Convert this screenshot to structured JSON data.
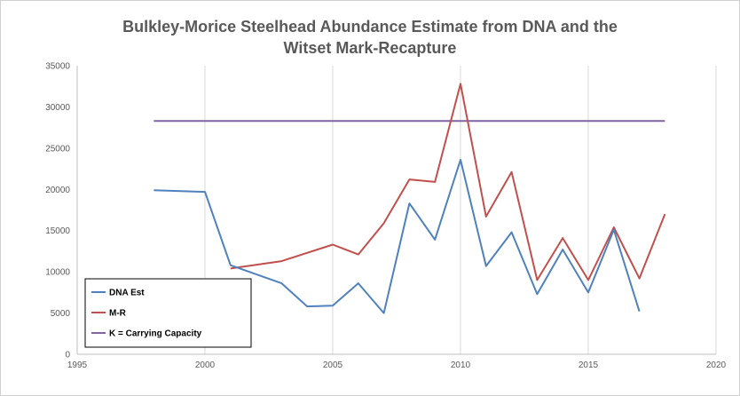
{
  "chart_data": {
    "type": "line",
    "title_lines": [
      "Bulkley-Morice Steelhead Abundance Estimate from DNA and the",
      "Witset Mark-Recapture"
    ],
    "xlabel": "",
    "ylabel": "",
    "xlim": [
      1995,
      2020
    ],
    "ylim": [
      0,
      35000
    ],
    "x_ticks": [
      1995,
      2000,
      2005,
      2010,
      2015,
      2020
    ],
    "y_ticks": [
      0,
      5000,
      10000,
      15000,
      20000,
      25000,
      30000,
      35000
    ],
    "grid": "vertical",
    "legend_position": "bottom-left",
    "series": [
      {
        "name": "DNA Est",
        "color": "#4f81bd",
        "points": [
          [
            1998,
            19900
          ],
          [
            2000,
            19700
          ],
          [
            2001,
            10800
          ],
          [
            2003,
            8600
          ],
          [
            2004,
            5800
          ],
          [
            2005,
            5900
          ],
          [
            2006,
            8600
          ],
          [
            2007,
            5000
          ],
          [
            2008,
            18300
          ],
          [
            2009,
            13900
          ],
          [
            2010,
            23600
          ],
          [
            2011,
            10700
          ],
          [
            2012,
            14800
          ],
          [
            2013,
            7300
          ],
          [
            2014,
            12700
          ],
          [
            2015,
            7500
          ],
          [
            2016,
            15100
          ],
          [
            2017,
            5200
          ]
        ]
      },
      {
        "name": "M-R",
        "color": "#c0504d",
        "points": [
          [
            2001,
            10400
          ],
          [
            2003,
            11300
          ],
          [
            2005,
            13300
          ],
          [
            2006,
            12100
          ],
          [
            2007,
            15900
          ],
          [
            2008,
            21200
          ],
          [
            2009,
            20900
          ],
          [
            2010,
            32800
          ],
          [
            2011,
            16700
          ],
          [
            2012,
            22100
          ],
          [
            2013,
            9000
          ],
          [
            2014,
            14100
          ],
          [
            2015,
            9000
          ],
          [
            2016,
            15400
          ],
          [
            2017,
            9200
          ],
          [
            2018,
            17000
          ]
        ]
      },
      {
        "name": "K = Carrying Capacity",
        "color": "#8064a2",
        "points": [
          [
            1998,
            28300
          ],
          [
            2018,
            28300
          ]
        ]
      }
    ]
  }
}
